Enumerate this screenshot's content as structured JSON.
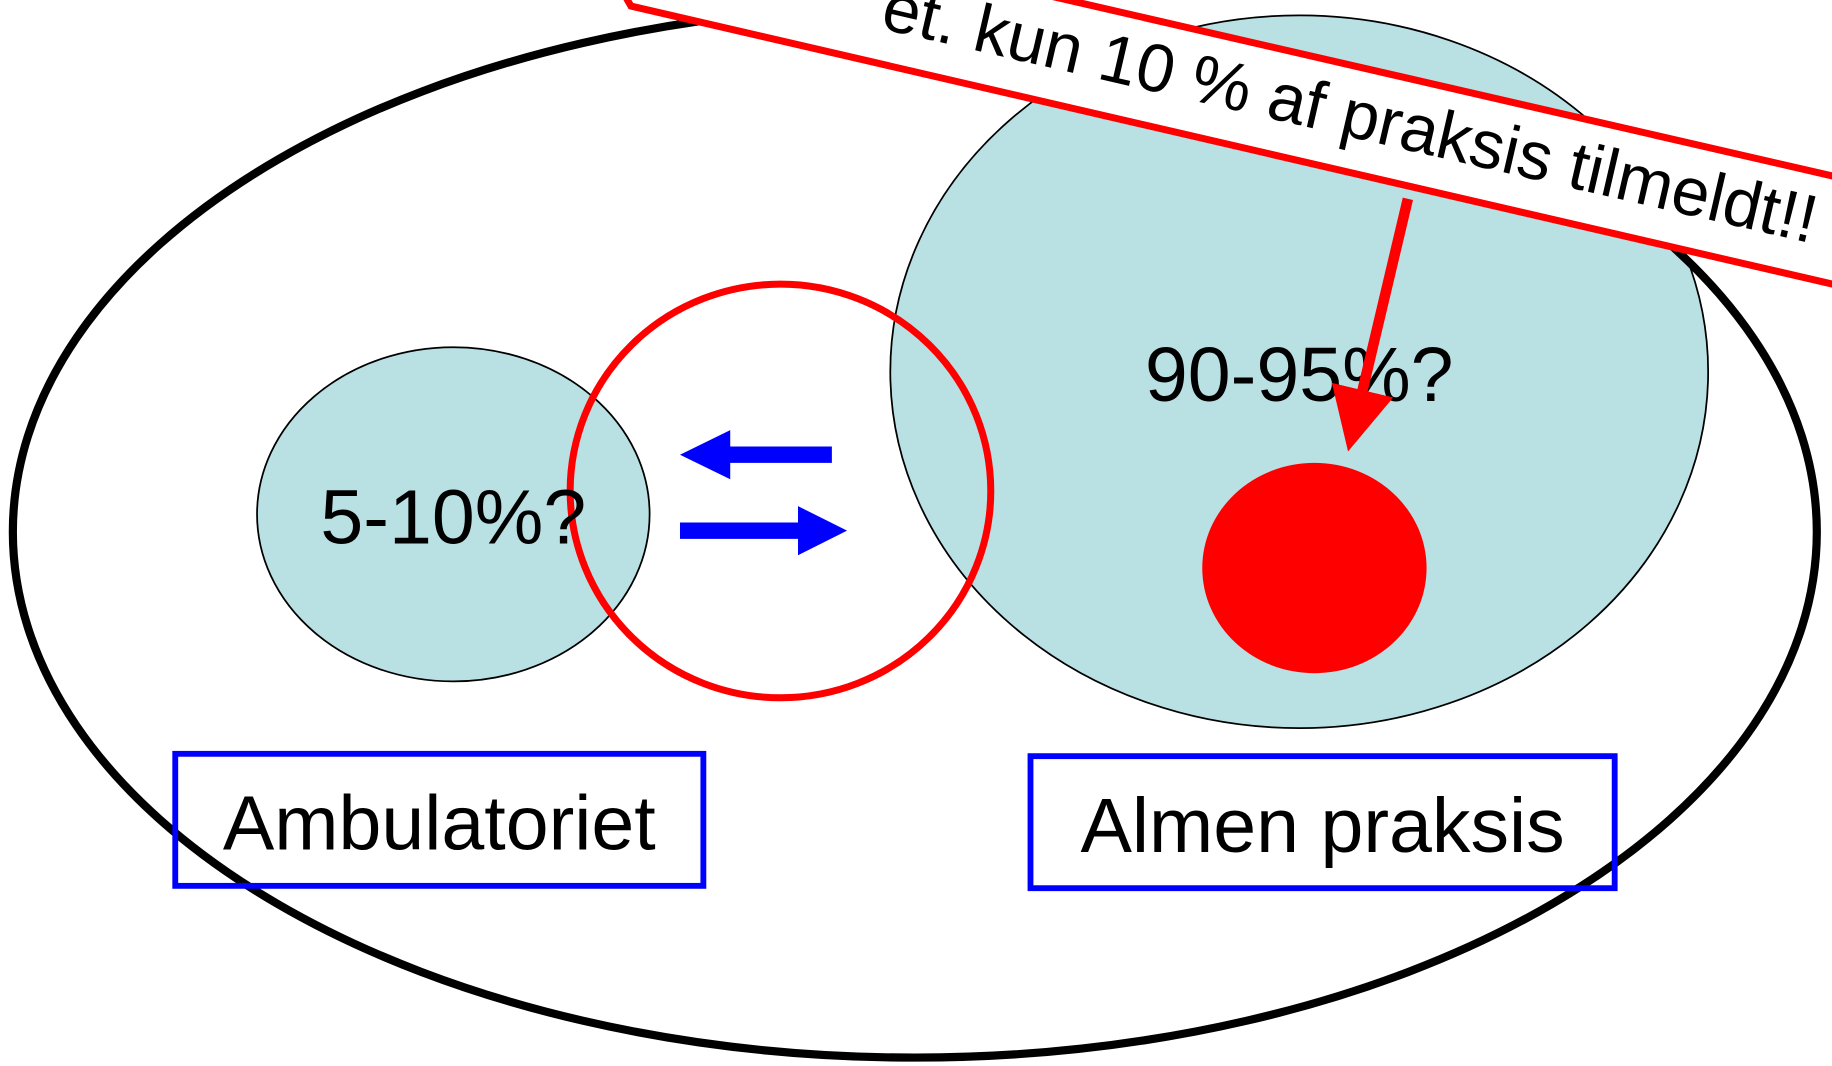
{
  "diagram": {
    "banner": "et. kun 10 % af praksis tilmeldt!!",
    "left_share": "5-10%?",
    "right_share": "90-95%?",
    "left_label": "Ambulatoriet",
    "right_label": "Almen praksis"
  }
}
